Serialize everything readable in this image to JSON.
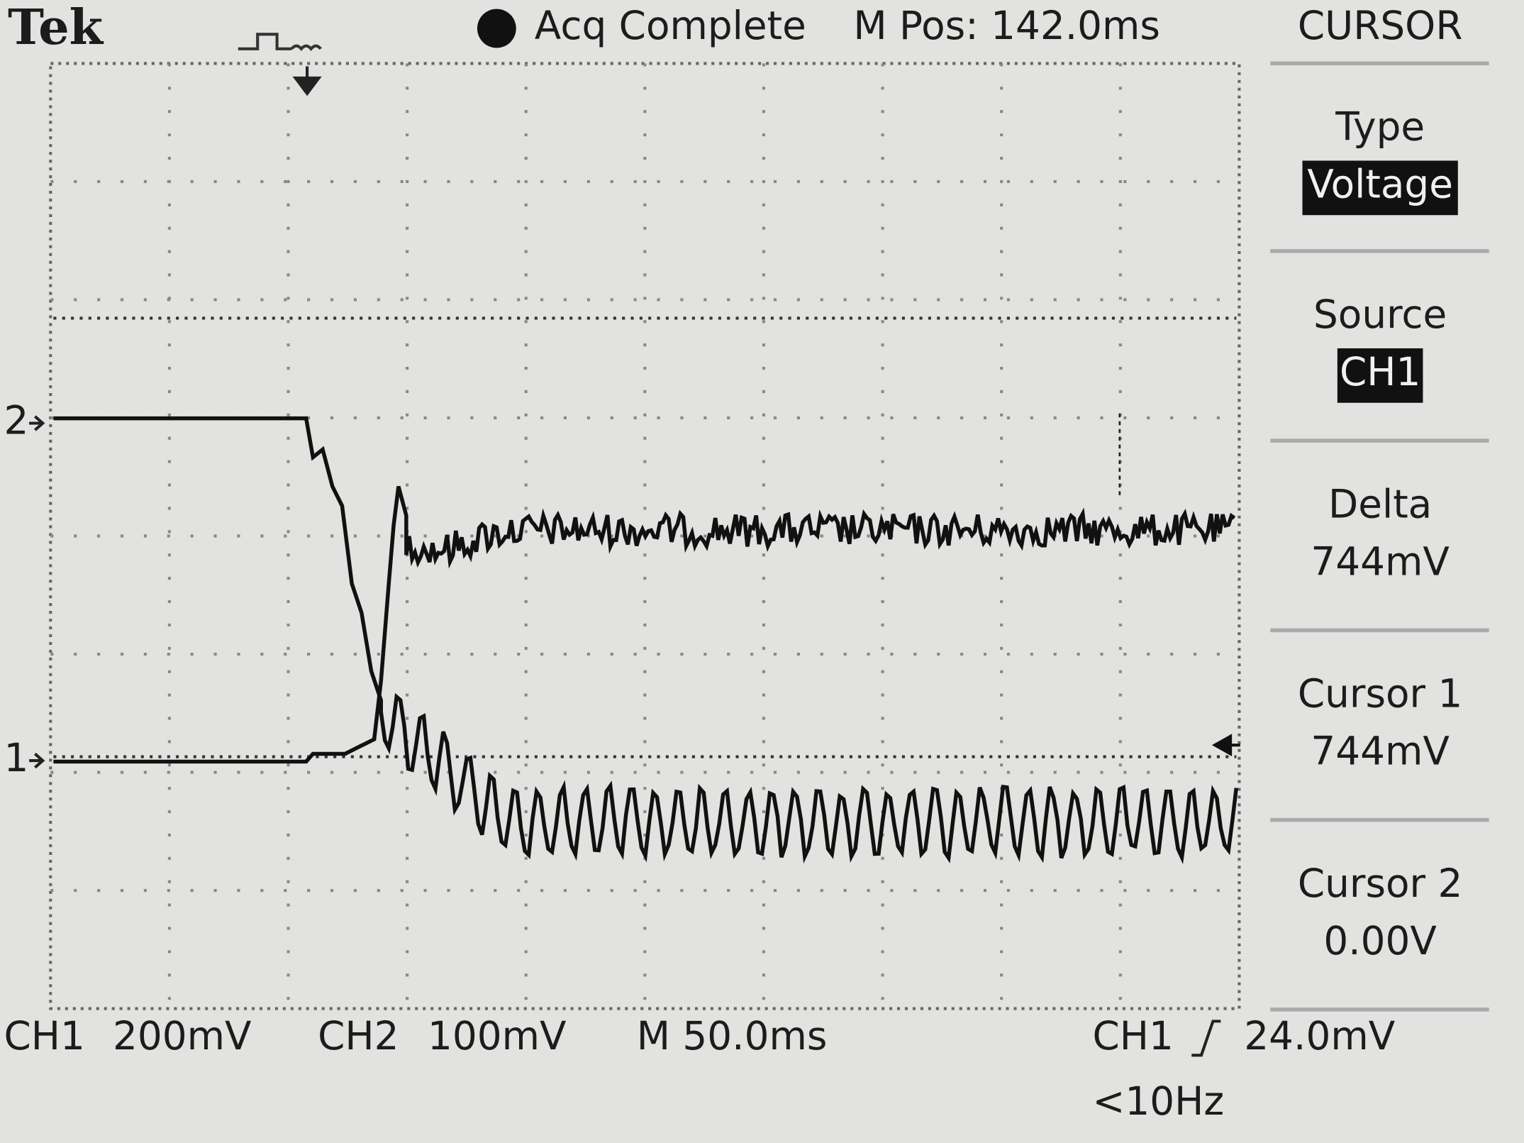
{
  "header": {
    "brand": "Tek",
    "status": "Acq Complete",
    "position": "M Pos: 142.0ms"
  },
  "menu": {
    "title": "CURSOR",
    "items": [
      {
        "label": "Type",
        "value": "Voltage"
      },
      {
        "label": "Source",
        "value": "CH1"
      },
      {
        "label": "Delta",
        "value": "744mV"
      },
      {
        "label": "Cursor 1",
        "value": "744mV"
      },
      {
        "label": "Cursor 2",
        "value": "0.00V"
      }
    ]
  },
  "markers": {
    "ch2": "2",
    "ch1": "1"
  },
  "footer": {
    "ch1": "CH1",
    "ch1_scale": "200mV",
    "ch2": "CH2",
    "ch2_scale": "100mV",
    "timebase": "M 50.0ms",
    "trigger_source": "CH1",
    "trigger_level": "24.0mV",
    "frequency": "<10Hz"
  }
}
